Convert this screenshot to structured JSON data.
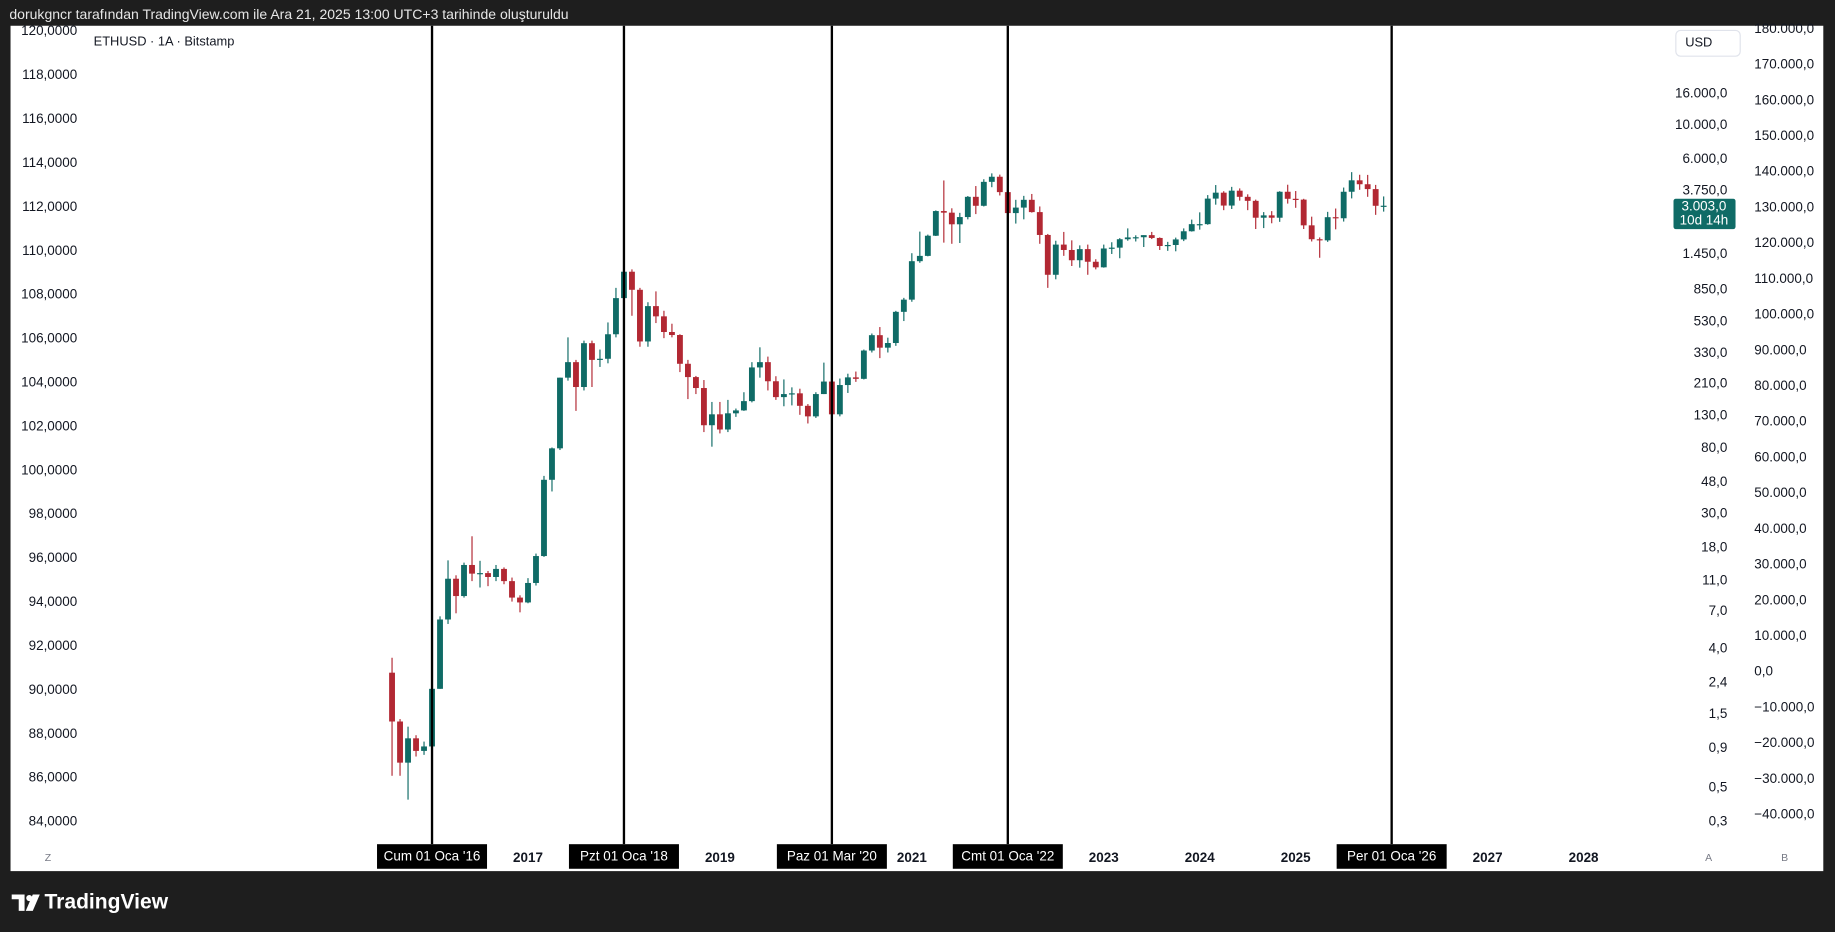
{
  "header": {
    "caption": "dorukgncr tarafından TradingView.com ile Ara 21, 2025 13:00 UTC+3 tarihinde oluşturuldu"
  },
  "chart_data": {
    "type": "candlestick",
    "title": "ETHUSD · 1A · Bitstamp",
    "currency": "USD",
    "log_scale": true,
    "grid": false,
    "up_color": "#0f6b66",
    "down_color": "#b22833",
    "open": [
      2.8,
      1.35,
      0.73,
      1.05,
      0.87,
      0.93,
      2.2,
      6.2,
      11.4,
      8.8,
      14.0,
      12.3,
      12.4,
      11.7,
      13.2,
      11.0,
      8.6,
      8.0,
      10.7,
      16.0,
      50,
      80,
      230,
      290,
      200,
      385,
      300,
      305,
      440,
      755,
      1120,
      855,
      395,
      670,
      575,
      455,
      435,
      283,
      232,
      197,
      113,
      133,
      106,
      135,
      141,
      162,
      268,
      290,
      218,
      172,
      180,
      182,
      151,
      129,
      180,
      217,
      133,
      206,
      231,
      226,
      345,
      434,
      360,
      386,
      615,
      738,
      1311,
      1419,
      1918,
      2773,
      2707,
      2275,
      2535,
      3430,
      3000,
      4290,
      4630,
      3680,
      2690,
      2920,
      3280,
      2730,
      1940,
      1070,
      1680,
      1550,
      1330,
      1570,
      1300,
      1196,
      1585,
      1605,
      1820,
      1870,
      1875,
      1935,
      1855,
      1645,
      1670,
      1815,
      2050,
      2280,
      2280,
      3340,
      3650,
      3010,
      3760,
      3430,
      3230,
      2510,
      2600,
      2510,
      3700,
      3330,
      3290,
      2240,
      1820,
      1790,
      2530,
      2490,
      3700,
      4390,
      4140,
      3850,
      3000
    ],
    "high": [
      3.5,
      1.4,
      1.25,
      1.1,
      1.0,
      2.6,
      6.5,
      15.0,
      12.0,
      14.5,
      21.5,
      14.9,
      12.8,
      14.0,
      13.5,
      11.6,
      8.9,
      11.5,
      16.6,
      53,
      81,
      230,
      420,
      300,
      400,
      400,
      350,
      525,
      880,
      1420,
      1160,
      880,
      710,
      835,
      625,
      515,
      440,
      300,
      236,
      222,
      160,
      160,
      165,
      145,
      185,
      290,
      362,
      315,
      235,
      224,
      199,
      195,
      155,
      185,
      288,
      253,
      227,
      244,
      252,
      350,
      445,
      490,
      418,
      624,
      758,
      1477,
      2040,
      1950,
      2800,
      4380,
      2890,
      2700,
      3470,
      4030,
      4460,
      4870,
      4780,
      3880,
      3280,
      3480,
      3580,
      2970,
      1970,
      1780,
      2030,
      1790,
      1660,
      1680,
      1350,
      1680,
      1740,
      1850,
      2140,
      1930,
      1930,
      2030,
      1870,
      1750,
      1865,
      2140,
      2440,
      2720,
      3520,
      4090,
      3730,
      3980,
      3890,
      3560,
      3290,
      2730,
      2770,
      3730,
      4110,
      3740,
      3330,
      2550,
      1870,
      2740,
      2880,
      3940,
      4960,
      4770,
      4760,
      4100,
      3450
    ],
    "low": [
      0.6,
      0.6,
      0.42,
      0.8,
      0.82,
      0.93,
      2.2,
      5.8,
      6.8,
      8.6,
      11.0,
      10.0,
      10.2,
      11.0,
      10.5,
      8.1,
      6.9,
      7.9,
      10.3,
      15.8,
      42,
      78,
      220,
      140,
      190,
      200,
      270,
      285,
      420,
      745,
      580,
      365,
      365,
      520,
      415,
      420,
      250,
      167,
      180,
      102,
      82,
      100,
      102,
      128,
      140,
      159,
      230,
      190,
      165,
      150,
      152,
      132,
      116,
      126,
      180,
      90,
      129,
      183,
      216,
      224,
      335,
      308,
      335,
      370,
      536,
      715,
      1280,
      1410,
      1910,
      1730,
      1700,
      1720,
      2450,
      2650,
      2970,
      3960,
      3500,
      2160,
      2300,
      2450,
      2710,
      1700,
      880,
      1000,
      1420,
      1220,
      1190,
      1070,
      1160,
      1190,
      1460,
      1370,
      1780,
      1760,
      1620,
      1825,
      1550,
      1530,
      1520,
      1770,
      2040,
      2100,
      2260,
      3050,
      2810,
      2860,
      3240,
      2810,
      2120,
      2150,
      2310,
      2360,
      3100,
      2910,
      2120,
      1760,
      1380,
      1750,
      2110,
      2370,
      3350,
      3810,
      3430,
      2620,
      2750
    ],
    "close": [
      1.35,
      0.73,
      1.05,
      0.87,
      0.93,
      2.2,
      6.2,
      11.4,
      8.8,
      14.0,
      12.3,
      12.4,
      11.7,
      13.2,
      11.0,
      8.6,
      8.0,
      10.7,
      16.0,
      50,
      80,
      230,
      290,
      200,
      385,
      300,
      305,
      440,
      755,
      1120,
      855,
      395,
      670,
      575,
      455,
      435,
      283,
      232,
      197,
      113,
      133,
      106,
      135,
      141,
      162,
      268,
      290,
      218,
      172,
      180,
      182,
      151,
      129,
      180,
      217,
      133,
      206,
      231,
      226,
      345,
      434,
      360,
      386,
      615,
      738,
      1311,
      1419,
      1918,
      2773,
      2707,
      2275,
      2535,
      3430,
      3000,
      4290,
      4630,
      3680,
      2690,
      2920,
      3280,
      2730,
      1940,
      1070,
      1680,
      1550,
      1330,
      1570,
      1300,
      1196,
      1585,
      1605,
      1820,
      1870,
      1875,
      1935,
      1855,
      1645,
      1670,
      1815,
      2050,
      2280,
      2280,
      3340,
      3650,
      3010,
      3760,
      3430,
      3230,
      2510,
      2600,
      2510,
      3700,
      3330,
      3290,
      2240,
      1820,
      1790,
      2530,
      2490,
      3700,
      4390,
      4140,
      3850,
      3000,
      3003
    ],
    "ylim": [
      0.2275,
      44200
    ],
    "yticks": [
      {
        "value": 16000,
        "label": "16.000,0"
      },
      {
        "value": 10000,
        "label": "10.000,0"
      },
      {
        "value": 6000,
        "label": "6.000,0"
      },
      {
        "value": 3750,
        "label": "3.750,0"
      },
      {
        "value": 1450,
        "label": "1.450,0"
      },
      {
        "value": 850,
        "label": "850,0"
      },
      {
        "value": 530,
        "label": "530,0"
      },
      {
        "value": 330,
        "label": "330,0"
      },
      {
        "value": 210,
        "label": "210,0"
      },
      {
        "value": 130,
        "label": "130,0"
      },
      {
        "value": 80,
        "label": "80,0"
      },
      {
        "value": 48,
        "label": "48,0"
      },
      {
        "value": 30,
        "label": "30,0"
      },
      {
        "value": 18,
        "label": "18,0"
      },
      {
        "value": 11,
        "label": "11,0"
      },
      {
        "value": 7,
        "label": "7,0"
      },
      {
        "value": 4,
        "label": "4,0"
      },
      {
        "value": 2.4,
        "label": "2,4"
      },
      {
        "value": 1.5,
        "label": "1,5"
      },
      {
        "value": 0.9,
        "label": "0,9"
      },
      {
        "value": 0.5,
        "label": "0,5"
      },
      {
        "value": 0.3,
        "label": "0,3"
      }
    ],
    "left_axis": {
      "lim": [
        83.15,
        120.27
      ],
      "ticks": [
        {
          "value": 120,
          "label": "120,0000"
        },
        {
          "value": 118,
          "label": "118,0000"
        },
        {
          "value": 116,
          "label": "116,0000"
        },
        {
          "value": 114,
          "label": "114,0000"
        },
        {
          "value": 112,
          "label": "112,0000"
        },
        {
          "value": 110,
          "label": "110,0000"
        },
        {
          "value": 108,
          "label": "108,0000"
        },
        {
          "value": 106,
          "label": "106,0000"
        },
        {
          "value": 104,
          "label": "104,0000"
        },
        {
          "value": 102,
          "label": "102,0000"
        },
        {
          "value": 100,
          "label": "100,0000"
        },
        {
          "value": 98,
          "label": "98,0000"
        },
        {
          "value": 96,
          "label": "96,0000"
        },
        {
          "value": 94,
          "label": "94,0000"
        },
        {
          "value": 92,
          "label": "92,0000"
        },
        {
          "value": 90,
          "label": "90,0000"
        },
        {
          "value": 88,
          "label": "88,0000"
        },
        {
          "value": 86,
          "label": "86,0000"
        },
        {
          "value": 84,
          "label": "84,0000"
        }
      ]
    },
    "right_axis": {
      "lim": [
        -47200,
        181000
      ],
      "ticks": [
        {
          "value": 180000,
          "label": "180.000,0"
        },
        {
          "value": 170000,
          "label": "170.000,0"
        },
        {
          "value": 160000,
          "label": "160.000,0"
        },
        {
          "value": 150000,
          "label": "150.000,0"
        },
        {
          "value": 140000,
          "label": "140.000,0"
        },
        {
          "value": 130000,
          "label": "130.000,0"
        },
        {
          "value": 120000,
          "label": "120.000,0"
        },
        {
          "value": 110000,
          "label": "110.000,0"
        },
        {
          "value": 100000,
          "label": "100.000,0"
        },
        {
          "value": 90000,
          "label": "90.000,0"
        },
        {
          "value": 80000,
          "label": "80.000,0"
        },
        {
          "value": 70000,
          "label": "70.000,0"
        },
        {
          "value": 60000,
          "label": "60.000,0"
        },
        {
          "value": 50000,
          "label": "50.000,0"
        },
        {
          "value": 40000,
          "label": "40.000,0"
        },
        {
          "value": 30000,
          "label": "30.000,0"
        },
        {
          "value": 20000,
          "label": "20.000,0"
        },
        {
          "value": 10000,
          "label": "10.000,0"
        },
        {
          "value": 0,
          "label": "0,0"
        },
        {
          "value": -10000,
          "label": "−10.000,0"
        },
        {
          "value": -20000,
          "label": "−20.000,0"
        },
        {
          "value": -30000,
          "label": "−30.000,0"
        },
        {
          "value": -40000,
          "label": "−40.000,0"
        }
      ]
    },
    "years": [
      2017,
      2019,
      2021,
      2023,
      2024,
      2025,
      2027,
      2028
    ],
    "markers": [
      "Cum 01 Oca '16",
      "Pzt 01 Oca '18",
      "Paz 01 Mar '20",
      "Cmt 01 Oca '22",
      "Per 01 Oca '26"
    ],
    "last_price": {
      "value": 3003,
      "label": "3.003,0"
    },
    "countdown": "10d 14h"
  },
  "axis_buttons": [
    "Z",
    "A",
    "B"
  ],
  "footer": {
    "brand": "TradingView"
  }
}
